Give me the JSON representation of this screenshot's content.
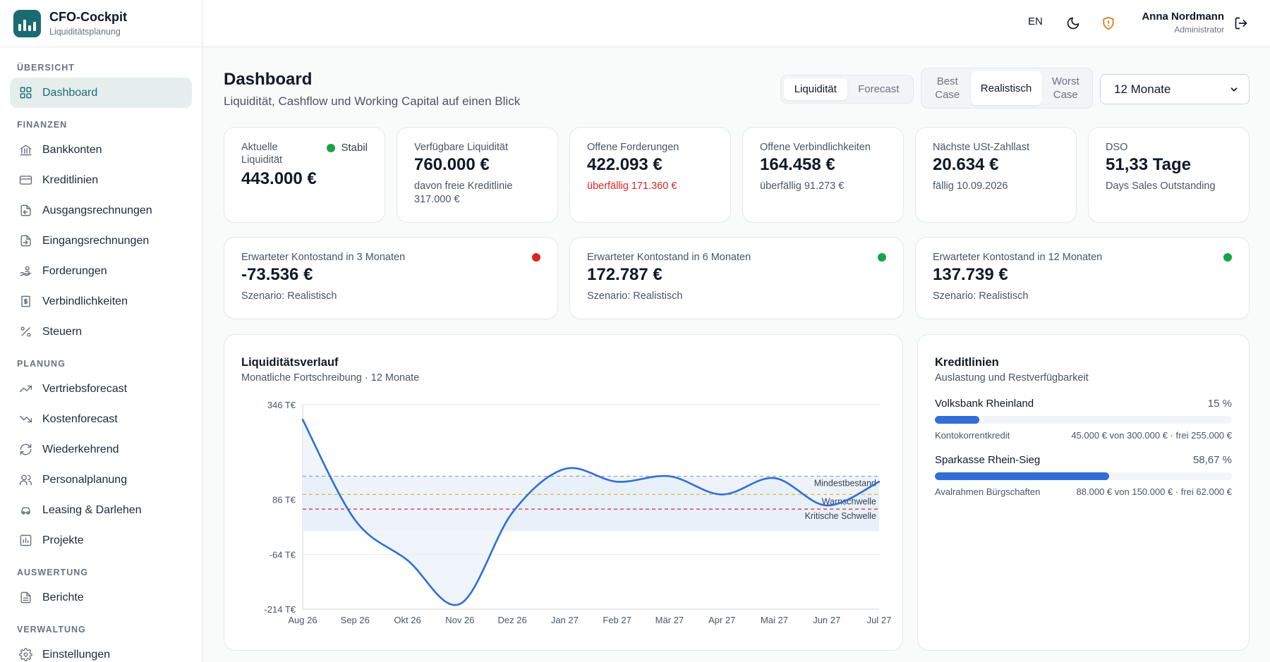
{
  "brand": {
    "title": "CFO-Cockpit",
    "subtitle": "Liquiditätsplanung"
  },
  "sidebar": {
    "sections": [
      {
        "title": "ÜBERSICHT",
        "items": [
          {
            "label": "Dashboard",
            "icon": "dashboard-icon",
            "active": true
          }
        ]
      },
      {
        "title": "FINANZEN",
        "items": [
          {
            "label": "Bankkonten",
            "icon": "bank-icon"
          },
          {
            "label": "Kreditlinien",
            "icon": "credit-card-icon"
          },
          {
            "label": "Ausgangsrechnungen",
            "icon": "outgoing-invoice-icon"
          },
          {
            "label": "Eingangsrechnungen",
            "icon": "incoming-invoice-icon"
          },
          {
            "label": "Forderungen",
            "icon": "hand-coins-icon"
          },
          {
            "label": "Verbindlichkeiten",
            "icon": "bill-icon"
          },
          {
            "label": "Steuern",
            "icon": "percent-icon"
          }
        ]
      },
      {
        "title": "PLANUNG",
        "items": [
          {
            "label": "Vertriebsforecast",
            "icon": "trend-up-icon"
          },
          {
            "label": "Kostenforecast",
            "icon": "trend-down-icon"
          },
          {
            "label": "Wiederkehrend",
            "icon": "refresh-icon"
          },
          {
            "label": "Personalplanung",
            "icon": "users-icon"
          },
          {
            "label": "Leasing & Darlehen",
            "icon": "car-icon"
          },
          {
            "label": "Projekte",
            "icon": "project-chart-icon"
          }
        ]
      },
      {
        "title": "AUSWERTUNG",
        "items": [
          {
            "label": "Berichte",
            "icon": "report-icon"
          }
        ]
      },
      {
        "title": "VERWALTUNG",
        "items": [
          {
            "label": "Einstellungen",
            "icon": "gear-icon"
          }
        ]
      }
    ]
  },
  "header": {
    "lang": "EN",
    "theme_icon": "moon-icon",
    "security_icon": "shield-alert-icon",
    "user_name": "Anna Nordmann",
    "user_role": "Administrator",
    "logout_icon": "logout-icon"
  },
  "page": {
    "title": "Dashboard",
    "subtitle": "Liquidität, Cashflow und Working Capital auf einen Blick"
  },
  "view_toggle": {
    "options": [
      "Liquidität",
      "Forecast"
    ],
    "selected": 0
  },
  "scenario_toggle": {
    "options": [
      "Best\nCase",
      "Realistisch",
      "Worst\nCase"
    ],
    "selected": 1
  },
  "period_select": {
    "value": "12 Monate"
  },
  "kpis": [
    {
      "label": "Aktuelle\nLiquidität",
      "value": "443.000 €",
      "badge": "Stabil"
    },
    {
      "label": "Verfügbare Liquidität",
      "value": "760.000 €",
      "sub": "davon freie Kreditlinie\n317.000 €"
    },
    {
      "label": "Offene Forderungen",
      "value": "422.093 €",
      "sub": "überfällig 171.360 €"
    },
    {
      "label": "Offene Verbindlichkeiten",
      "value": "164.458 €",
      "sub": "überfällig 91.273 €"
    },
    {
      "label": "Nächste USt-Zahllast",
      "value": "20.634 €",
      "sub": "fällig 10.09.2026"
    },
    {
      "label": "DSO",
      "value": "51,33 Tage",
      "sub": "Days Sales Outstanding"
    }
  ],
  "forecasts": [
    {
      "label": "Erwarteter Kontostand in 3 Monaten",
      "value": "-73.536 €",
      "sub": "Szenario: Realistisch",
      "status_color": "#dc2626"
    },
    {
      "label": "Erwarteter Kontostand in 6 Monaten",
      "value": "172.787 €",
      "sub": "Szenario: Realistisch",
      "status_color": "#16a34a"
    },
    {
      "label": "Erwarteter Kontostand in 12 Monaten",
      "value": "137.739 €",
      "sub": "Szenario: Realistisch",
      "status_color": "#16a34a"
    }
  ],
  "liquidity_card": {
    "title": "Liquiditätsverlauf",
    "subtitle": "Monatliche Fortschreibung · 12 Monate"
  },
  "chart_data": {
    "type": "line",
    "x": [
      "Aug 26",
      "Sep 26",
      "Okt 26",
      "Nov 26",
      "Dez 26",
      "Jan 27",
      "Feb 27",
      "Mär 27",
      "Apr 27",
      "Mai 27",
      "Jun 27",
      "Jul 27"
    ],
    "values": [
      305,
      30,
      -80,
      -200,
      50,
      170,
      135,
      150,
      100,
      145,
      70,
      135
    ],
    "ylim": [
      -214,
      346
    ],
    "yticks": [
      346,
      86,
      -64,
      -214
    ],
    "ytick_labels": [
      "346 T€",
      "86 T€",
      "-64 T€",
      "-214 T€"
    ],
    "baseline_band": [
      0,
      150
    ],
    "thresholds": [
      {
        "label": "Mindestbestand",
        "value": 150,
        "color": "#9ca3af"
      },
      {
        "label": "Warnschwelle",
        "value": 100,
        "color": "#e0b341"
      },
      {
        "label": "Kritische Schwelle",
        "value": 60,
        "color": "#dc2626"
      }
    ],
    "line_color": "#2f6fd6"
  },
  "credit_card": {
    "title": "Kreditlinien",
    "subtitle": "Auslastung und Restverfügbarkeit",
    "lines": [
      {
        "bank": "Volksbank Rheinland",
        "pct_label": "15 %",
        "fill": 0.15,
        "type": "Kontokorrentkredit",
        "detail": "45.000 € von 300.000 € · frei 255.000 €"
      },
      {
        "bank": "Sparkasse Rhein-Sieg",
        "pct_label": "58,67 %",
        "fill": 0.5867,
        "type": "Avalrahmen Bürgschaften",
        "detail": "88.000 € von 150.000 € · frei 62.000 €"
      }
    ]
  }
}
